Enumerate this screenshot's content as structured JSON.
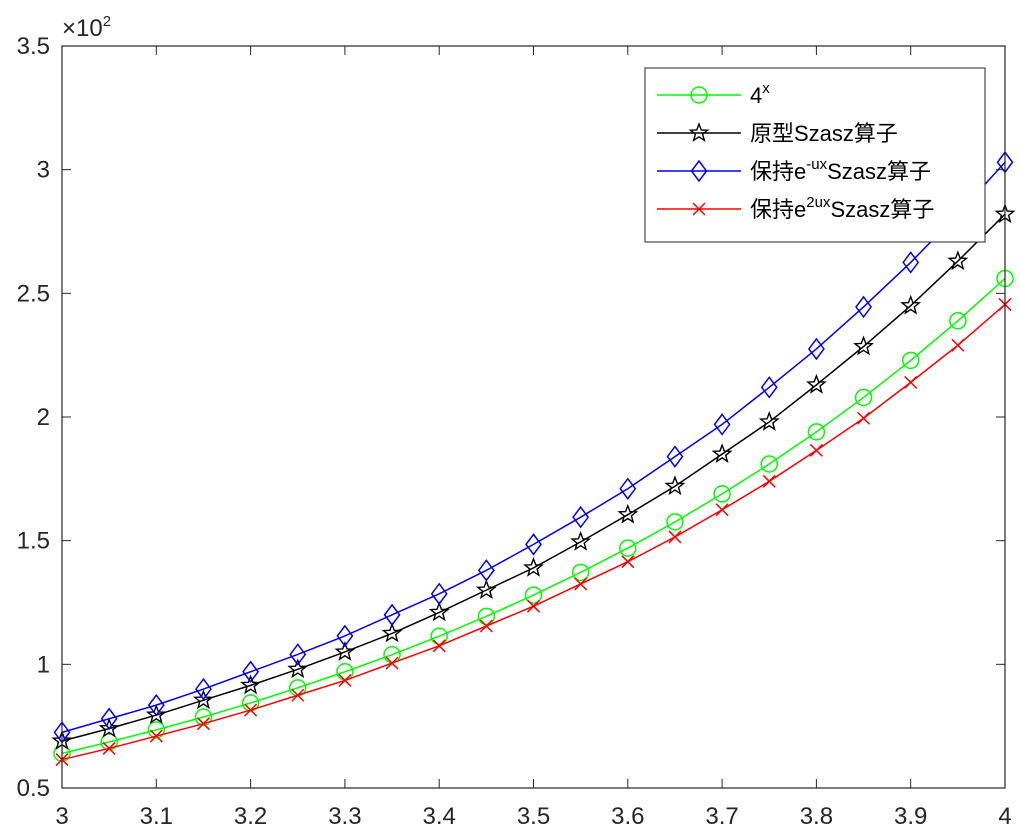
{
  "chart_data": {
    "type": "line",
    "title": "",
    "xlabel": "",
    "ylabel": "",
    "y_exponent_label": "×10",
    "y_exponent_power": "2",
    "xlim": [
      3,
      4
    ],
    "ylim": [
      0.5,
      3.5
    ],
    "xticks": [
      "3",
      "3.1",
      "3.2",
      "3.3",
      "3.4",
      "3.5",
      "3.6",
      "3.7",
      "3.8",
      "3.9",
      "4"
    ],
    "yticks": [
      "0.5",
      "1",
      "1.5",
      "2",
      "2.5",
      "3",
      "3.5"
    ],
    "grid": false,
    "legend_position": "top-right",
    "x": [
      3,
      3.05,
      3.1,
      3.15,
      3.2,
      3.25,
      3.3,
      3.35,
      3.4,
      3.45,
      3.5,
      3.55,
      3.6,
      3.65,
      3.7,
      3.75,
      3.8,
      3.85,
      3.9,
      3.95,
      4
    ],
    "series": [
      {
        "legend_base": "4",
        "legend_sup": "x",
        "legend_tail": "",
        "color": "#00ff00",
        "marker": "circle",
        "values": [
          0.64,
          0.686,
          0.735,
          0.787,
          0.844,
          0.905,
          0.97,
          1.039,
          1.114,
          1.194,
          1.28,
          1.372,
          1.47,
          1.576,
          1.689,
          1.81,
          1.94,
          2.079,
          2.229,
          2.389,
          2.56
        ]
      },
      {
        "legend_base": "原型Szasz算子",
        "legend_sup": "",
        "legend_tail": "",
        "color": "#000000",
        "marker": "star",
        "values": [
          0.69,
          0.74,
          0.795,
          0.855,
          0.915,
          0.98,
          1.05,
          1.125,
          1.21,
          1.3,
          1.39,
          1.495,
          1.605,
          1.72,
          1.85,
          1.98,
          2.13,
          2.285,
          2.45,
          2.63,
          2.82
        ]
      },
      {
        "legend_base": "保持e",
        "legend_sup": "-ux",
        "legend_tail": "Szasz算子",
        "color": "#0000ff",
        "marker": "diamond",
        "values": [
          0.725,
          0.78,
          0.835,
          0.9,
          0.97,
          1.04,
          1.115,
          1.2,
          1.285,
          1.38,
          1.485,
          1.595,
          1.71,
          1.84,
          1.97,
          2.12,
          2.275,
          2.445,
          2.625,
          2.82,
          3.03
        ]
      },
      {
        "legend_base": "保持e",
        "legend_sup": "2ux",
        "legend_tail": "Szasz算子",
        "color": "#ff0000",
        "marker": "cross",
        "values": [
          0.615,
          0.66,
          0.71,
          0.76,
          0.815,
          0.875,
          0.935,
          1.005,
          1.075,
          1.155,
          1.235,
          1.325,
          1.415,
          1.515,
          1.625,
          1.74,
          1.865,
          1.995,
          2.14,
          2.29,
          2.455
        ]
      }
    ]
  }
}
